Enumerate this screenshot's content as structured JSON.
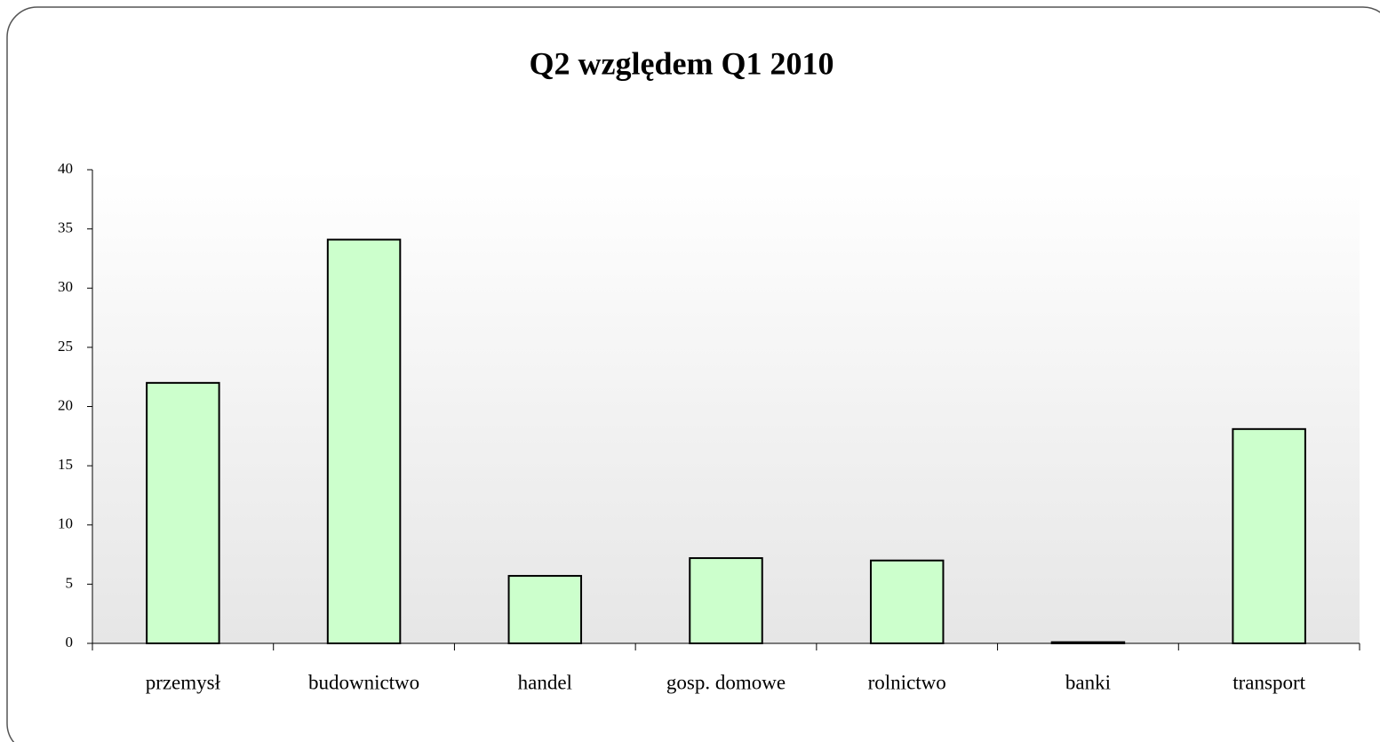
{
  "chart_data": {
    "type": "bar",
    "title": "Q2 względem Q1 2010",
    "categories": [
      "przemysł",
      "budownictwo",
      "handel",
      "gosp. domowe",
      "rolnictwo",
      "banki",
      "transport"
    ],
    "values": [
      22,
      34.1,
      5.7,
      7.2,
      7.0,
      0.1,
      18.1
    ],
    "color": "#ccffcc",
    "ylim": [
      0,
      40
    ],
    "yticks": [
      0,
      5,
      10,
      15,
      20,
      25,
      30,
      35,
      40
    ],
    "grid": false
  }
}
